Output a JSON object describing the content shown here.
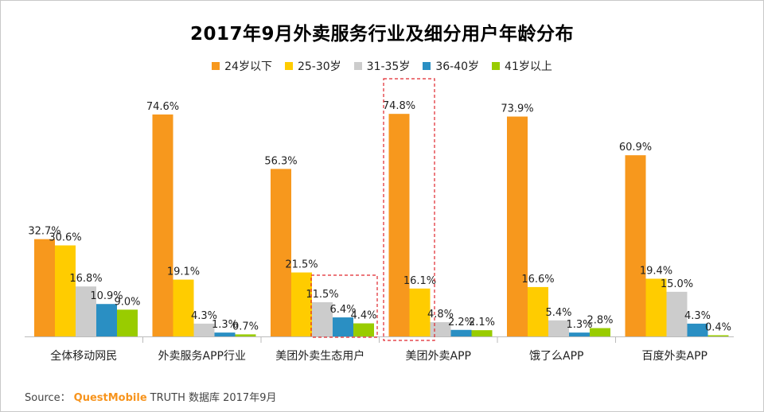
{
  "chart_data": {
    "type": "bar",
    "title": "2017年9月外卖服务行业及细分用户年龄分布",
    "categories": [
      "全体移动网民",
      "外卖服务APP行业",
      "美团外卖生态用户",
      "美团外卖APP",
      "饿了么APP",
      "百度外卖APP"
    ],
    "series": [
      {
        "name": "24岁以下",
        "color": "#f7981d",
        "values": [
          32.7,
          74.6,
          56.3,
          74.8,
          73.9,
          60.9
        ]
      },
      {
        "name": "25-30岁",
        "color": "#ffcc00",
        "values": [
          30.6,
          19.1,
          21.5,
          16.1,
          16.6,
          19.4
        ]
      },
      {
        "name": "31-35岁",
        "color": "#cccccc",
        "values": [
          16.8,
          4.3,
          11.5,
          4.8,
          5.4,
          15.0
        ]
      },
      {
        "name": "36-40岁",
        "color": "#2a8fc3",
        "values": [
          10.9,
          1.3,
          6.4,
          2.2,
          1.3,
          4.3
        ]
      },
      {
        "name": "41岁以上",
        "color": "#99cc00",
        "values": [
          9.0,
          0.7,
          4.4,
          2.1,
          2.8,
          0.4
        ]
      }
    ],
    "labels": [
      [
        "32.7%",
        "74.6%",
        "56.3%",
        "74.8%",
        "73.9%",
        "60.9%"
      ],
      [
        "30.6%",
        "19.1%",
        "21.5%",
        "16.1%",
        "16.6%",
        "19.4%"
      ],
      [
        "16.8%",
        "4.3%",
        "11.5%",
        "4.8%",
        "5.4%",
        "15.0%"
      ],
      [
        "10.9%",
        "1.3%",
        "6.4%",
        "2.2%",
        "1.3%",
        "4.3%"
      ],
      [
        "9.0%",
        "0.7%",
        "4.4%",
        "2.1%",
        "2.8%",
        "0.4%"
      ]
    ],
    "ylim": [
      0,
      80
    ],
    "grid": false,
    "legend_position": "top-center",
    "highlights": [
      "美团外卖生态用户",
      "美团外卖APP"
    ]
  },
  "source": {
    "prefix": "Source：",
    "brand": "QuestMobile",
    "suffix": "TRUTH 数据库 2017年9月"
  }
}
